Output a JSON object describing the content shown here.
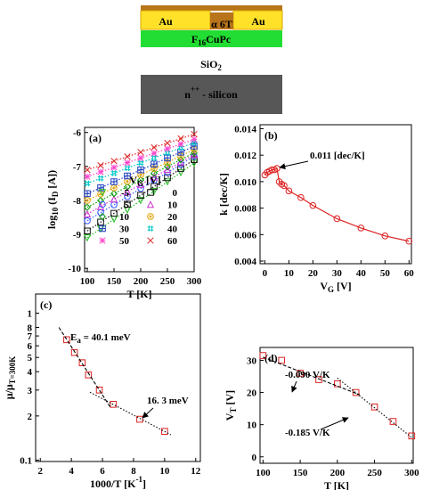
{
  "schematic": {
    "au_left": "Au",
    "au_right": "Au",
    "semiconductor": "α 6T",
    "layer": [
      "F",
      "16",
      "CuPc"
    ],
    "dielectric": [
      "SiO",
      "2"
    ],
    "substrate": [
      "n",
      "++",
      " - silicon"
    ]
  },
  "chart_data": [
    {
      "type": "line",
      "panel_label": "(a)",
      "x_label": "T [K]",
      "y_label": [
        "log",
        "10",
        " (I",
        "D",
        " [A])"
      ],
      "legend_title": [
        "V",
        "G",
        " [V]"
      ],
      "x": [
        100,
        125,
        150,
        175,
        200,
        225,
        250,
        275,
        300
      ],
      "xlim": [
        95,
        300
      ],
      "ylim": [
        -10.1,
        -5.85
      ],
      "xticks": [
        100,
        150,
        200,
        250,
        300
      ],
      "yticks": [
        -10,
        -9,
        -8,
        -7,
        -6
      ],
      "series": [
        {
          "name": "-5",
          "color": "#22bb22",
          "marker": "triangle-down",
          "values": [
            -9.1,
            -8.83,
            -8.55,
            -8.28,
            -8.0,
            -7.73,
            -7.45,
            -7.18,
            -6.9
          ]
        },
        {
          "name": "0",
          "color": "#111111",
          "marker": "square",
          "values": [
            -8.9,
            -8.64,
            -8.38,
            -8.11,
            -7.85,
            -7.59,
            -7.33,
            -7.06,
            -6.8
          ]
        },
        {
          "name": "5",
          "color": "#3355ff",
          "marker": "circle",
          "values": [
            -8.6,
            -8.36,
            -8.13,
            -7.89,
            -7.65,
            -7.41,
            -7.18,
            -6.94,
            -6.7
          ]
        },
        {
          "name": "10",
          "color": "#cc33cc",
          "marker": "triangle-up",
          "values": [
            -8.4,
            -8.18,
            -7.96,
            -7.74,
            -7.53,
            -7.31,
            -7.09,
            -6.87,
            -6.65
          ]
        },
        {
          "name": "10",
          "color": "#009900",
          "marker": "diamond",
          "values": [
            -8.2,
            -8.0,
            -7.8,
            -7.6,
            -7.4,
            -7.2,
            -7.0,
            -6.8,
            -6.6
          ]
        },
        {
          "name": "20",
          "color": "#e0a000",
          "marker": "circle-dot",
          "values": [
            -8.0,
            -7.81,
            -7.63,
            -7.44,
            -7.25,
            -7.06,
            -6.88,
            -6.69,
            -6.5
          ]
        },
        {
          "name": "30",
          "color": "#2040c0",
          "marker": "square-cross",
          "values": [
            -7.8,
            -7.63,
            -7.45,
            -7.28,
            -7.1,
            -6.93,
            -6.75,
            -6.58,
            -6.4
          ]
        },
        {
          "name": "40",
          "color": "#00c8c8",
          "marker": "hash",
          "values": [
            -7.5,
            -7.35,
            -7.2,
            -7.05,
            -6.9,
            -6.75,
            -6.6,
            -6.45,
            -6.3
          ]
        },
        {
          "name": "50",
          "color": "#ff44cc",
          "marker": "asterisk",
          "values": [
            -7.3,
            -7.16,
            -7.03,
            -6.89,
            -6.75,
            -6.61,
            -6.48,
            -6.34,
            -6.2
          ]
        },
        {
          "name": "60",
          "color": "#dd2222",
          "marker": "x",
          "values": [
            -7.1,
            -6.97,
            -6.84,
            -6.71,
            -6.58,
            -6.44,
            -6.31,
            -6.18,
            -6.05
          ]
        }
      ]
    },
    {
      "type": "line",
      "panel_label": "(b)",
      "x_label": [
        "V",
        "G",
        " [V]"
      ],
      "y_label": "k [dec/K]",
      "color": "#dd2222",
      "marker": "circle",
      "x": [
        0,
        1,
        2,
        3,
        4,
        5,
        6,
        7,
        8,
        10,
        15,
        20,
        30,
        40,
        50,
        60
      ],
      "values": [
        0.0105,
        0.0107,
        0.0108,
        0.0109,
        0.0109,
        0.011,
        0.01,
        0.0098,
        0.0097,
        0.0093,
        0.0088,
        0.0082,
        0.0072,
        0.0065,
        0.0059,
        0.0055
      ],
      "xlim": [
        -2,
        61
      ],
      "ylim": [
        0.0038,
        0.0143
      ],
      "xticks": [
        0,
        10,
        20,
        30,
        40,
        50,
        60
      ],
      "yticks": [
        0.004,
        0.006,
        0.008,
        {
          "value": 0.01,
          "label": "0.010"
        },
        0.012,
        0.014
      ],
      "annotations": [
        "0.011 [dec/K]"
      ]
    },
    {
      "type": "scatter",
      "panel_label": "(c)",
      "x_label": [
        "1000/T [K",
        "-1",
        "]"
      ],
      "y_label": [
        "μ/μ",
        "T=300K"
      ],
      "color": "#dd2222",
      "marker": "square",
      "ylog": true,
      "x": [
        3.7,
        4.2,
        4.7,
        5.1,
        5.8,
        6.7,
        8.4,
        10.0
      ],
      "values": [
        0.66,
        0.54,
        0.46,
        0.38,
        0.3,
        0.24,
        0.19,
        0.157
      ],
      "xlim": [
        1.7,
        12.3
      ],
      "ylim": [
        0.098,
        1.35
      ],
      "xticks": [
        2,
        4,
        6,
        8,
        10,
        12
      ],
      "yticks": [
        0.1,
        {
          "value": 0.2,
          "label": "2"
        },
        {
          "value": 0.3,
          "label": "3"
        },
        {
          "value": 0.4,
          "label": "4"
        },
        {
          "value": 0.5,
          "label": "5"
        },
        {
          "value": 0.6,
          "label": "6"
        },
        {
          "value": 0.7,
          "label": "7"
        },
        {
          "value": 0.8,
          "label": "8"
        },
        1
      ],
      "fits": [
        {
          "x": [
            3.2,
            6.5
          ],
          "values": [
            0.8,
            0.23
          ]
        },
        {
          "x": [
            5.2,
            10.4
          ],
          "values": [
            0.29,
            0.149
          ]
        }
      ],
      "annotations": [
        [
          "E",
          "a",
          " = 40.1 meV"
        ],
        "16. 3 meV"
      ]
    },
    {
      "type": "scatter",
      "panel_label": "(d)",
      "x_label": "T [K]",
      "y_label": [
        "V",
        "T",
        " [V]"
      ],
      "color": "#dd2222",
      "marker": "square",
      "x": [
        100,
        125,
        150,
        175,
        200,
        225,
        250,
        275,
        300
      ],
      "values": [
        31.5,
        30,
        26,
        24,
        22.7,
        20,
        15.5,
        11,
        6.5
      ],
      "xlim": [
        96,
        302
      ],
      "ylim": [
        -2,
        34
      ],
      "xticks": [
        100,
        150,
        200,
        250,
        300
      ],
      "yticks": [
        0,
        10,
        20,
        30
      ],
      "fits": [
        {
          "x": [
            100,
            230
          ],
          "values": [
            31,
            19.3
          ]
        },
        {
          "x": [
            200,
            300
          ],
          "values": [
            24.5,
            6
          ]
        }
      ],
      "annotations": [
        "-0.090 V/K",
        "-0.185 V/K"
      ]
    }
  ]
}
